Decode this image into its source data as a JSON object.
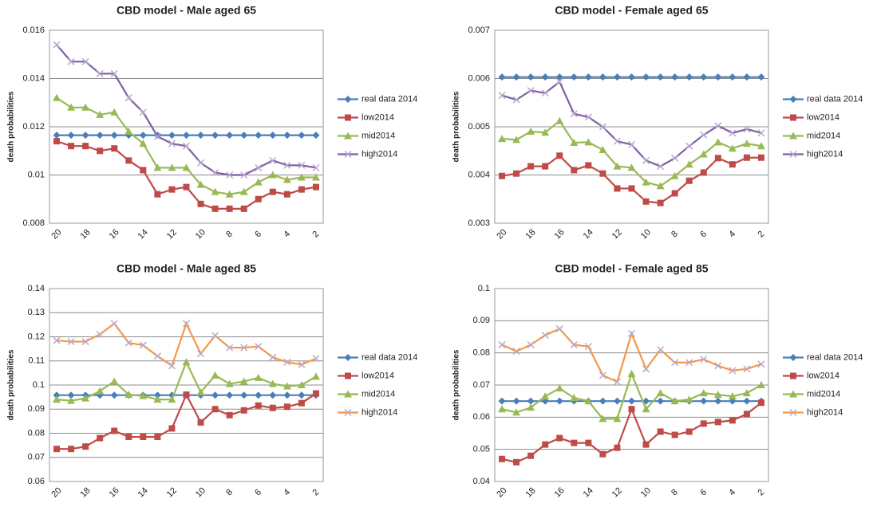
{
  "chart_data": [
    {
      "type": "line",
      "title": "CBD model - Male aged 65",
      "y_label": "death probabilities",
      "categories": [
        20,
        null,
        18,
        null,
        16,
        null,
        14,
        null,
        12,
        null,
        10,
        null,
        8,
        null,
        6,
        null,
        4,
        null,
        2
      ],
      "ylim": [
        0.008,
        0.016
      ],
      "yticks": [
        0.008,
        0.01,
        0.012,
        0.014,
        0.016
      ],
      "grid": true,
      "legend": "right",
      "series": [
        {
          "name": "real data 2014",
          "color": "#4a7ebb",
          "marker": "diamond",
          "values": [
            0.01165,
            0.01165,
            0.01165,
            0.01165,
            0.01165,
            0.01165,
            0.01165,
            0.01165,
            0.01165,
            0.01165,
            0.01165,
            0.01165,
            0.01165,
            0.01165,
            0.01165,
            0.01165,
            0.01165,
            0.01165,
            0.01165
          ]
        },
        {
          "name": "low2014",
          "color": "#be4b48",
          "marker": "square",
          "values": [
            0.0114,
            0.0112,
            0.0112,
            0.011,
            0.0111,
            0.0106,
            0.0102,
            0.0092,
            0.0094,
            0.0095,
            0.0088,
            0.0086,
            0.0086,
            0.0086,
            0.009,
            0.0093,
            0.0092,
            0.0094,
            0.0095
          ]
        },
        {
          "name": "mid2014",
          "color": "#98b954",
          "marker": "triangle",
          "values": [
            0.0132,
            0.0128,
            0.0128,
            0.0125,
            0.0126,
            0.0118,
            0.0113,
            0.0103,
            0.0103,
            0.0103,
            0.0096,
            0.0093,
            0.0092,
            0.0093,
            0.0097,
            0.01,
            0.0098,
            0.0099,
            0.0099
          ]
        },
        {
          "name": "high2014",
          "color": "#7d60a0",
          "marker": "x",
          "values": [
            0.0154,
            0.0147,
            0.0147,
            0.0142,
            0.0142,
            0.0132,
            0.0126,
            0.0116,
            0.0113,
            0.0112,
            0.0105,
            0.0101,
            0.01,
            0.01,
            0.0103,
            0.0106,
            0.0104,
            0.0104,
            0.0103
          ]
        }
      ]
    },
    {
      "type": "line",
      "title": "CBD model - Female aged 65",
      "y_label": "death probabilities",
      "categories": [
        20,
        null,
        18,
        null,
        16,
        null,
        14,
        null,
        12,
        null,
        10,
        null,
        8,
        null,
        6,
        null,
        4,
        null,
        2
      ],
      "ylim": [
        0.003,
        0.007
      ],
      "yticks": [
        0.003,
        0.004,
        0.005,
        0.006,
        0.007
      ],
      "grid": true,
      "legend": "right",
      "series": [
        {
          "name": "real data 2014",
          "color": "#4a7ebb",
          "marker": "diamond",
          "values": [
            0.00603,
            0.00603,
            0.00603,
            0.00603,
            0.00603,
            0.00603,
            0.00603,
            0.00603,
            0.00603,
            0.00603,
            0.00603,
            0.00603,
            0.00603,
            0.00603,
            0.00603,
            0.00603,
            0.00603,
            0.00603,
            0.00603
          ]
        },
        {
          "name": "low2014",
          "color": "#be4b48",
          "marker": "square",
          "values": [
            0.00398,
            0.00403,
            0.00418,
            0.00418,
            0.0044,
            0.0041,
            0.0042,
            0.00403,
            0.00372,
            0.00372,
            0.00345,
            0.00342,
            0.00362,
            0.00388,
            0.00405,
            0.00435,
            0.00422,
            0.00436,
            0.00436
          ]
        },
        {
          "name": "mid2014",
          "color": "#98b954",
          "marker": "triangle",
          "values": [
            0.00475,
            0.00473,
            0.0049,
            0.00488,
            0.00512,
            0.00467,
            0.00468,
            0.00452,
            0.00418,
            0.00415,
            0.00385,
            0.00377,
            0.00398,
            0.00422,
            0.00443,
            0.00468,
            0.00455,
            0.00465,
            0.0046
          ]
        },
        {
          "name": "high2014",
          "color": "#7d60a0",
          "marker": "x",
          "values": [
            0.00565,
            0.00556,
            0.00575,
            0.0057,
            0.00593,
            0.00527,
            0.0052,
            0.005,
            0.0047,
            0.00463,
            0.0043,
            0.00418,
            0.00435,
            0.0046,
            0.00483,
            0.00502,
            0.00487,
            0.00495,
            0.00487
          ]
        }
      ]
    },
    {
      "type": "line",
      "title": "CBD model - Male aged 85",
      "y_label": "death probabilities",
      "categories": [
        20,
        null,
        18,
        null,
        16,
        null,
        14,
        null,
        12,
        null,
        10,
        null,
        8,
        null,
        6,
        null,
        4,
        null,
        2
      ],
      "ylim": [
        0.06,
        0.14
      ],
      "yticks": [
        0.06,
        0.07,
        0.08,
        0.09,
        0.1,
        0.11,
        0.12,
        0.13,
        0.14
      ],
      "grid": true,
      "legend": "right",
      "series": [
        {
          "name": "real data 2014",
          "color": "#4a7ebb",
          "marker": "diamond",
          "values": [
            0.0958,
            0.0958,
            0.0958,
            0.0958,
            0.0958,
            0.0958,
            0.0958,
            0.0958,
            0.0958,
            0.0958,
            0.0958,
            0.0958,
            0.0958,
            0.0958,
            0.0958,
            0.0958,
            0.0958,
            0.0958,
            0.0958
          ]
        },
        {
          "name": "low2014",
          "color": "#be4b48",
          "marker": "square",
          "values": [
            0.0735,
            0.0735,
            0.0745,
            0.078,
            0.081,
            0.0785,
            0.0785,
            0.0785,
            0.082,
            0.096,
            0.0845,
            0.09,
            0.0875,
            0.0895,
            0.0915,
            0.0905,
            0.091,
            0.0925,
            0.0965
          ]
        },
        {
          "name": "mid2014",
          "color": "#98b954",
          "marker": "triangle",
          "values": [
            0.094,
            0.0935,
            0.0945,
            0.0975,
            0.1015,
            0.096,
            0.0955,
            0.094,
            0.094,
            0.1095,
            0.097,
            0.104,
            0.1005,
            0.1015,
            0.103,
            0.1005,
            0.0995,
            0.1,
            0.1035
          ]
        },
        {
          "name": "high2014",
          "color": "#f79646",
          "marker": "x",
          "values": [
            0.1185,
            0.118,
            0.118,
            0.121,
            0.1255,
            0.1175,
            0.1165,
            0.112,
            0.108,
            0.1255,
            0.113,
            0.1205,
            0.1155,
            0.1155,
            0.116,
            0.1115,
            0.1095,
            0.1085,
            0.111
          ]
        }
      ]
    },
    {
      "type": "line",
      "title": "CBD model - Female aged 85",
      "y_label": "death probabilities",
      "categories": [
        20,
        null,
        18,
        null,
        16,
        null,
        14,
        null,
        12,
        null,
        10,
        null,
        8,
        null,
        6,
        null,
        4,
        null,
        2
      ],
      "ylim": [
        0.04,
        0.1
      ],
      "yticks": [
        0.04,
        0.05,
        0.06,
        0.07,
        0.08,
        0.09,
        0.1
      ],
      "grid": true,
      "legend": "right",
      "series": [
        {
          "name": "real data 2014",
          "color": "#4a7ebb",
          "marker": "diamond",
          "values": [
            0.065,
            0.065,
            0.065,
            0.065,
            0.065,
            0.065,
            0.065,
            0.065,
            0.065,
            0.065,
            0.065,
            0.065,
            0.065,
            0.065,
            0.065,
            0.065,
            0.065,
            0.065,
            0.065
          ]
        },
        {
          "name": "low2014",
          "color": "#be4b48",
          "marker": "square",
          "values": [
            0.047,
            0.046,
            0.048,
            0.0515,
            0.0535,
            0.052,
            0.052,
            0.0485,
            0.0505,
            0.0625,
            0.0515,
            0.0555,
            0.0545,
            0.0555,
            0.058,
            0.0585,
            0.059,
            0.061,
            0.0645
          ]
        },
        {
          "name": "mid2014",
          "color": "#98b954",
          "marker": "triangle",
          "values": [
            0.0625,
            0.0615,
            0.063,
            0.0665,
            0.069,
            0.066,
            0.065,
            0.0595,
            0.0595,
            0.0735,
            0.0625,
            0.0675,
            0.065,
            0.0655,
            0.0675,
            0.067,
            0.0665,
            0.0675,
            0.07
          ]
        },
        {
          "name": "high2014",
          "color": "#f79646",
          "marker": "x",
          "values": [
            0.0825,
            0.0805,
            0.0825,
            0.0855,
            0.0875,
            0.0825,
            0.082,
            0.073,
            0.071,
            0.086,
            0.075,
            0.081,
            0.077,
            0.077,
            0.078,
            0.076,
            0.0745,
            0.075,
            0.0765
          ]
        }
      ]
    }
  ]
}
